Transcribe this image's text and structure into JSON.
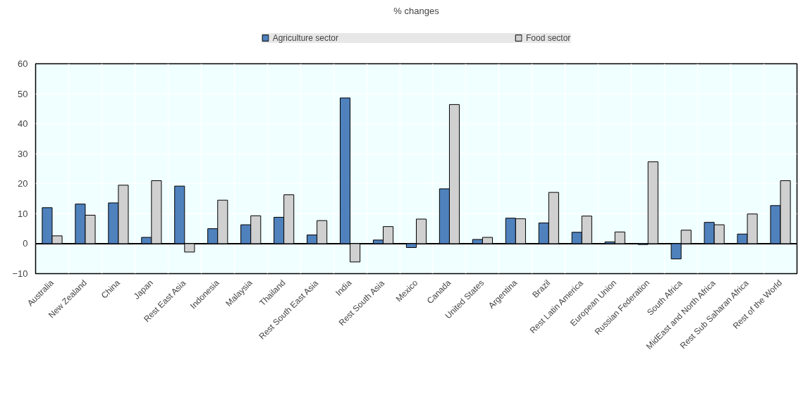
{
  "chart_data": {
    "type": "bar",
    "title": "% changes",
    "categories": [
      "Australia",
      "New Zealand",
      "China",
      "Japan",
      "Rest East Asia",
      "Indonesia",
      "Malaysia",
      "Thailand",
      "Rest South East Asia",
      "India",
      "Rest South Asia",
      "Mexico",
      "Canada",
      "United States",
      "Argentina",
      "Brazil",
      "Rest Latin America",
      "European Union",
      "Russian Federation",
      "South Africa",
      "MidEast and North Africa",
      "Rest Sub Saharan Africa",
      "Rest of the World"
    ],
    "series": [
      {
        "name": "Agriculture sector",
        "color": "#4f81bd",
        "values": [
          12.0,
          13.2,
          13.6,
          2.1,
          19.2,
          5.0,
          6.3,
          8.8,
          2.9,
          48.6,
          1.2,
          -1.3,
          18.3,
          1.4,
          8.5,
          6.9,
          3.8,
          0.6,
          -0.3,
          -5.1,
          7.1,
          3.2,
          12.7
        ]
      },
      {
        "name": "Food sector",
        "color": "#d0d0d0",
        "values": [
          2.6,
          9.5,
          19.5,
          21.0,
          -2.8,
          14.5,
          9.3,
          16.3,
          7.7,
          -6.1,
          5.7,
          8.2,
          46.4,
          2.1,
          8.3,
          17.1,
          9.2,
          3.9,
          27.3,
          4.5,
          6.3,
          9.9,
          21.0
        ]
      }
    ],
    "ylim": [
      -10,
      60
    ],
    "yticks": [
      -10,
      0,
      10,
      20,
      30,
      40,
      50,
      60
    ],
    "grid": true,
    "legend": "top"
  }
}
